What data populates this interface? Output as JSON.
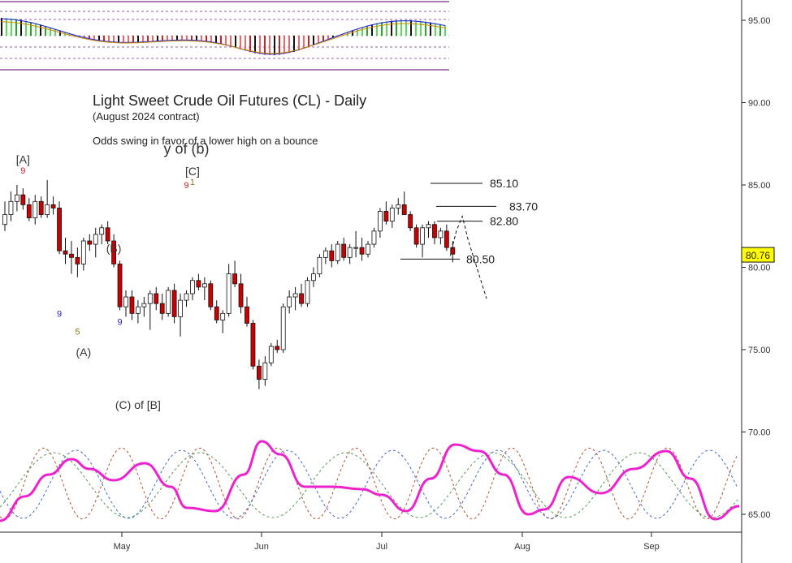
{
  "chart_data": {
    "type": "candlestick",
    "title": "Light Sweet Crude Oil Futures (CL) - Daily",
    "subtitle": "(August 2024 contract)",
    "note": "Odds swing in favor of a lower high on a bounce",
    "y_ticks": [
      "95.00",
      "90.00",
      "85.00",
      "80.00",
      "75.00",
      "70.00",
      "65.00"
    ],
    "y_tick_values": [
      95,
      90,
      85,
      80,
      75,
      70,
      65
    ],
    "ylim": [
      64.3,
      97.0
    ],
    "x_ticks": [
      "May",
      "Jun",
      "Jul",
      "Aug",
      "Sep"
    ],
    "last_price": "80.76",
    "last_price_color": "#ffff00",
    "up_color": "#ffffff",
    "down_color": "#cc0000",
    "candles": [
      {
        "o": 82.6,
        "h": 84.0,
        "l": 82.2,
        "c": 83.2
      },
      {
        "o": 83.2,
        "h": 84.6,
        "l": 82.8,
        "c": 84.0
      },
      {
        "o": 84.0,
        "h": 85.0,
        "l": 83.4,
        "c": 84.4
      },
      {
        "o": 84.4,
        "h": 84.8,
        "l": 83.5,
        "c": 83.8
      },
      {
        "o": 83.8,
        "h": 84.2,
        "l": 82.8,
        "c": 83.0
      },
      {
        "o": 83.0,
        "h": 84.4,
        "l": 82.6,
        "c": 84.0
      },
      {
        "o": 84.0,
        "h": 84.3,
        "l": 83.0,
        "c": 83.2
      },
      {
        "o": 83.2,
        "h": 85.3,
        "l": 83.0,
        "c": 83.8
      },
      {
        "o": 83.8,
        "h": 84.3,
        "l": 83.2,
        "c": 83.6
      },
      {
        "o": 83.6,
        "h": 84.0,
        "l": 80.8,
        "c": 81.0
      },
      {
        "o": 81.0,
        "h": 81.8,
        "l": 80.2,
        "c": 80.8
      },
      {
        "o": 80.8,
        "h": 81.6,
        "l": 79.6,
        "c": 80.6
      },
      {
        "o": 80.6,
        "h": 81.2,
        "l": 79.4,
        "c": 80.2
      },
      {
        "o": 80.2,
        "h": 81.8,
        "l": 79.8,
        "c": 81.6
      },
      {
        "o": 81.6,
        "h": 82.0,
        "l": 81.0,
        "c": 81.4
      },
      {
        "o": 81.4,
        "h": 82.4,
        "l": 80.6,
        "c": 82.0
      },
      {
        "o": 82.0,
        "h": 82.6,
        "l": 81.4,
        "c": 82.4
      },
      {
        "o": 82.4,
        "h": 82.8,
        "l": 81.4,
        "c": 81.6
      },
      {
        "o": 81.6,
        "h": 82.0,
        "l": 80.0,
        "c": 80.2
      },
      {
        "o": 80.2,
        "h": 80.4,
        "l": 77.4,
        "c": 77.6
      },
      {
        "o": 77.6,
        "h": 78.6,
        "l": 77.0,
        "c": 78.2
      },
      {
        "o": 78.2,
        "h": 78.6,
        "l": 76.8,
        "c": 77.2
      },
      {
        "o": 77.2,
        "h": 78.0,
        "l": 76.6,
        "c": 77.6
      },
      {
        "o": 77.6,
        "h": 78.2,
        "l": 77.0,
        "c": 77.8
      },
      {
        "o": 77.8,
        "h": 78.6,
        "l": 76.2,
        "c": 78.4
      },
      {
        "o": 78.4,
        "h": 78.8,
        "l": 77.4,
        "c": 77.8
      },
      {
        "o": 77.8,
        "h": 78.4,
        "l": 76.8,
        "c": 77.2
      },
      {
        "o": 77.2,
        "h": 78.8,
        "l": 77.0,
        "c": 78.6
      },
      {
        "o": 78.6,
        "h": 79.0,
        "l": 76.6,
        "c": 77.0
      },
      {
        "o": 77.0,
        "h": 78.4,
        "l": 75.8,
        "c": 78.0
      },
      {
        "o": 78.0,
        "h": 78.6,
        "l": 77.6,
        "c": 78.4
      },
      {
        "o": 78.4,
        "h": 79.4,
        "l": 78.0,
        "c": 79.2
      },
      {
        "o": 79.2,
        "h": 79.6,
        "l": 78.6,
        "c": 78.8
      },
      {
        "o": 78.8,
        "h": 79.4,
        "l": 78.0,
        "c": 79.0
      },
      {
        "o": 79.0,
        "h": 79.2,
        "l": 77.4,
        "c": 77.6
      },
      {
        "o": 77.6,
        "h": 78.0,
        "l": 76.6,
        "c": 76.8
      },
      {
        "o": 76.8,
        "h": 77.4,
        "l": 76.0,
        "c": 77.2
      },
      {
        "o": 77.2,
        "h": 80.2,
        "l": 77.0,
        "c": 79.6
      },
      {
        "o": 79.6,
        "h": 80.4,
        "l": 78.8,
        "c": 79.0
      },
      {
        "o": 79.0,
        "h": 79.6,
        "l": 77.2,
        "c": 77.6
      },
      {
        "o": 77.6,
        "h": 78.2,
        "l": 76.4,
        "c": 76.6
      },
      {
        "o": 76.6,
        "h": 76.8,
        "l": 73.8,
        "c": 74.0
      },
      {
        "o": 74.0,
        "h": 74.4,
        "l": 72.6,
        "c": 73.2
      },
      {
        "o": 73.2,
        "h": 74.6,
        "l": 72.8,
        "c": 74.2
      },
      {
        "o": 74.2,
        "h": 75.4,
        "l": 74.0,
        "c": 75.2
      },
      {
        "o": 75.2,
        "h": 75.6,
        "l": 74.8,
        "c": 75.0
      },
      {
        "o": 75.0,
        "h": 77.8,
        "l": 74.8,
        "c": 77.6
      },
      {
        "o": 77.6,
        "h": 78.6,
        "l": 77.2,
        "c": 78.2
      },
      {
        "o": 78.2,
        "h": 78.8,
        "l": 77.4,
        "c": 78.4
      },
      {
        "o": 78.4,
        "h": 79.0,
        "l": 77.6,
        "c": 77.8
      },
      {
        "o": 77.8,
        "h": 79.4,
        "l": 77.6,
        "c": 79.2
      },
      {
        "o": 79.2,
        "h": 80.0,
        "l": 78.8,
        "c": 79.6
      },
      {
        "o": 79.6,
        "h": 80.8,
        "l": 79.4,
        "c": 80.6
      },
      {
        "o": 80.6,
        "h": 81.2,
        "l": 80.2,
        "c": 81.0
      },
      {
        "o": 81.0,
        "h": 81.4,
        "l": 80.0,
        "c": 80.4
      },
      {
        "o": 80.4,
        "h": 81.6,
        "l": 80.2,
        "c": 81.4
      },
      {
        "o": 81.4,
        "h": 81.8,
        "l": 80.4,
        "c": 80.6
      },
      {
        "o": 80.6,
        "h": 81.4,
        "l": 80.2,
        "c": 81.2
      },
      {
        "o": 81.2,
        "h": 82.2,
        "l": 80.6,
        "c": 81.2
      },
      {
        "o": 81.2,
        "h": 81.8,
        "l": 80.4,
        "c": 80.8
      },
      {
        "o": 80.8,
        "h": 81.6,
        "l": 80.6,
        "c": 81.4
      },
      {
        "o": 81.4,
        "h": 82.4,
        "l": 81.2,
        "c": 82.2
      },
      {
        "o": 82.2,
        "h": 83.6,
        "l": 81.8,
        "c": 83.4
      },
      {
        "o": 83.4,
        "h": 84.0,
        "l": 82.6,
        "c": 82.8
      },
      {
        "o": 82.8,
        "h": 83.8,
        "l": 82.4,
        "c": 83.6
      },
      {
        "o": 83.6,
        "h": 84.2,
        "l": 83.2,
        "c": 83.8
      },
      {
        "o": 83.8,
        "h": 84.6,
        "l": 83.2,
        "c": 83.2
      },
      {
        "o": 83.2,
        "h": 83.4,
        "l": 82.2,
        "c": 82.4
      },
      {
        "o": 82.4,
        "h": 82.6,
        "l": 81.2,
        "c": 81.4
      },
      {
        "o": 81.4,
        "h": 82.6,
        "l": 80.6,
        "c": 82.4
      },
      {
        "o": 82.4,
        "h": 82.8,
        "l": 81.8,
        "c": 82.6
      },
      {
        "o": 82.6,
        "h": 82.8,
        "l": 81.4,
        "c": 81.8
      },
      {
        "o": 81.8,
        "h": 82.4,
        "l": 81.4,
        "c": 82.2
      },
      {
        "o": 82.2,
        "h": 82.6,
        "l": 81.0,
        "c": 81.2
      },
      {
        "o": 81.2,
        "h": 81.6,
        "l": 80.3,
        "c": 80.8
      }
    ],
    "annotations": [
      {
        "text": "[A]",
        "i": 3,
        "price": 86.3,
        "color": "#333"
      },
      {
        "text": "9",
        "i": 3,
        "price": 85.7,
        "color": "#cc2222",
        "small": true
      },
      {
        "text": "9",
        "i": 9,
        "price": 77.0,
        "color": "#2222cc",
        "small": true
      },
      {
        "text": "5",
        "i": 12,
        "price": 75.9,
        "color": "#8a7a1a",
        "small": true
      },
      {
        "text": "(A)",
        "i": 13,
        "price": 74.6,
        "color": "#333"
      },
      {
        "text": "(B)",
        "i": 18,
        "price": 80.9,
        "color": "#333"
      },
      {
        "text": "9",
        "i": 19,
        "price": 76.5,
        "color": "#2222cc",
        "small": true
      },
      {
        "text": "(C) of [B]",
        "i": 22,
        "price": 71.4,
        "color": "#333"
      },
      {
        "text": "y of (b)",
        "i": 30,
        "price": 86.9,
        "color": "#333",
        "big": true
      },
      {
        "text": "[C]",
        "i": 31,
        "price": 85.6,
        "color": "#333"
      },
      {
        "text": "9",
        "i": 30,
        "price": 84.8,
        "color": "#cc2222",
        "small": true
      },
      {
        "text": "1",
        "i": 31,
        "price": 85.0,
        "color": "#8a7a1a",
        "small": true
      }
    ],
    "levels": [
      {
        "label": "85.10",
        "value": 85.1
      },
      {
        "label": "83.70",
        "value": 83.7
      },
      {
        "label": "82.80",
        "value": 82.8
      },
      {
        "label": "80.50",
        "value": 80.5
      }
    ],
    "projection": [
      {
        "i": 34,
        "price": 80.7
      },
      {
        "i": 35,
        "price": 82.2
      },
      {
        "i": 36,
        "price": 83.1
      },
      {
        "i": 37,
        "price": 81.6
      },
      {
        "i": 40,
        "price": 78.1
      }
    ]
  }
}
